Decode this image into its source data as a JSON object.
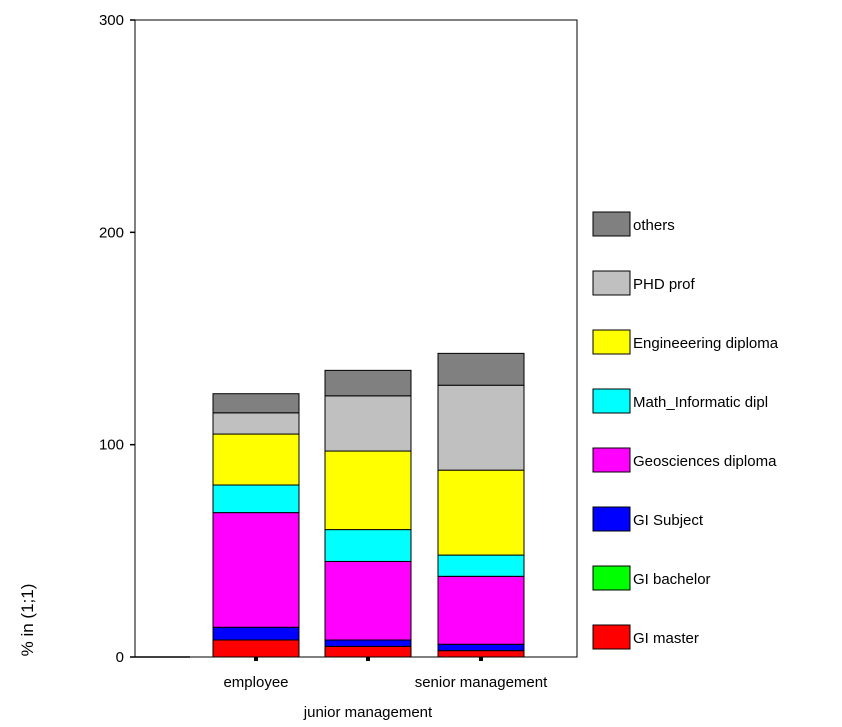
{
  "chart_data": {
    "type": "bar",
    "stacked": true,
    "title": "",
    "ylabel": "% in (1;1)",
    "xlabel": "",
    "ylim": [
      0,
      300
    ],
    "yticks": [
      0,
      100,
      200,
      300
    ],
    "categories": [
      "employee",
      "junior management",
      "senior management"
    ],
    "series": [
      {
        "name": "GI master",
        "color": "#ff0000",
        "values": [
          8,
          5,
          3
        ]
      },
      {
        "name": "GI bachelor",
        "color": "#00ff00",
        "values": [
          0,
          0,
          0
        ]
      },
      {
        "name": "GI Subject",
        "color": "#0000ff",
        "values": [
          6,
          3,
          3
        ]
      },
      {
        "name": "Geosciences diploma",
        "color": "#ff00ff",
        "values": [
          54,
          37,
          32
        ]
      },
      {
        "name": "Math_Informatic dipl",
        "color": "#00ffff",
        "values": [
          13,
          15,
          10
        ]
      },
      {
        "name": "Engineeering diploma",
        "color": "#ffff00",
        "values": [
          24,
          37,
          40
        ]
      },
      {
        "name": "PHD prof",
        "color": "#c0c0c0",
        "values": [
          10,
          26,
          40
        ]
      },
      {
        "name": "others",
        "color": "#808080",
        "values": [
          9,
          12,
          15
        ]
      }
    ],
    "legend_position": "right",
    "grid": false
  }
}
